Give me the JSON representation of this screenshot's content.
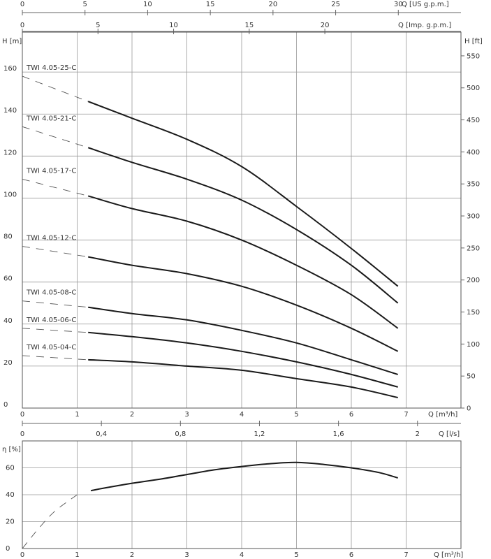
{
  "colors": {
    "curve": "#1a1a1a",
    "grid": "#999999",
    "axis": "#555555",
    "text": "#333333"
  },
  "chart_data": [
    {
      "type": "line",
      "title": "",
      "grid": true,
      "x_axes": {
        "q_usgpm": {
          "label": "Q [US g.p.m.]",
          "ticks": [
            0,
            5,
            10,
            15,
            20,
            25,
            30
          ],
          "range": [
            0,
            35
          ]
        },
        "q_impgpm": {
          "label": "Q [Imp. g.p.m.]",
          "ticks": [
            0,
            5,
            10,
            15,
            20
          ],
          "range": [
            0,
            29
          ]
        },
        "q_m3h": {
          "label": "Q [m³/h]",
          "ticks": [
            0,
            1,
            2,
            3,
            4,
            5,
            6,
            7
          ],
          "range": [
            0,
            8
          ]
        },
        "q_ls": {
          "label": "Q [l/s]",
          "ticks": [
            "0",
            "0,4",
            "0,8",
            "1,2",
            "1,6",
            "2"
          ],
          "range": [
            0,
            2.22
          ]
        }
      },
      "y_axes": {
        "h_m": {
          "label": "H [m]",
          "ticks": [
            0,
            20,
            40,
            60,
            80,
            100,
            120,
            140,
            160
          ],
          "range": [
            0,
            179
          ]
        },
        "h_ft": {
          "label": "H [ft]",
          "ticks": [
            0,
            50,
            100,
            150,
            200,
            250,
            300,
            350,
            400,
            450,
            500,
            550
          ],
          "range": [
            0,
            587
          ]
        }
      },
      "series": [
        {
          "name": "TWI 4.05-25-C",
          "dash_points": [
            [
              0,
              158
            ],
            [
              1.2,
              146
            ]
          ],
          "points": [
            [
              1.2,
              146
            ],
            [
              2,
              138
            ],
            [
              3,
              128
            ],
            [
              4,
              115
            ],
            [
              5,
              96
            ],
            [
              6,
              76
            ],
            [
              6.85,
              58
            ]
          ]
        },
        {
          "name": "TWI 4.05-21-C",
          "dash_points": [
            [
              0,
              134
            ],
            [
              1.2,
              124
            ]
          ],
          "points": [
            [
              1.2,
              124
            ],
            [
              2,
              117
            ],
            [
              3,
              109
            ],
            [
              4,
              99
            ],
            [
              5,
              85
            ],
            [
              6,
              68
            ],
            [
              6.85,
              50
            ]
          ]
        },
        {
          "name": "TWI 4.05-17-C",
          "dash_points": [
            [
              0,
              109
            ],
            [
              1.2,
              101
            ]
          ],
          "points": [
            [
              1.2,
              101
            ],
            [
              2,
              95
            ],
            [
              3,
              89
            ],
            [
              4,
              80
            ],
            [
              5,
              68
            ],
            [
              6,
              54
            ],
            [
              6.85,
              38
            ]
          ]
        },
        {
          "name": "TWI 4.05-12-C",
          "dash_points": [
            [
              0,
              77
            ],
            [
              1.2,
              72
            ]
          ],
          "points": [
            [
              1.2,
              72
            ],
            [
              2,
              68
            ],
            [
              3,
              64
            ],
            [
              4,
              58
            ],
            [
              5,
              49
            ],
            [
              6,
              38
            ],
            [
              6.85,
              27
            ]
          ]
        },
        {
          "name": "TWI 4.05-08-C",
          "dash_points": [
            [
              0,
              51
            ],
            [
              1.2,
              48
            ]
          ],
          "points": [
            [
              1.2,
              48
            ],
            [
              2,
              45
            ],
            [
              3,
              42
            ],
            [
              4,
              37
            ],
            [
              5,
              31
            ],
            [
              6,
              23
            ],
            [
              6.85,
              16
            ]
          ]
        },
        {
          "name": "TWI 4.05-06-C",
          "dash_points": [
            [
              0,
              38
            ],
            [
              1.2,
              36
            ]
          ],
          "points": [
            [
              1.2,
              36
            ],
            [
              2,
              34
            ],
            [
              3,
              31
            ],
            [
              4,
              27
            ],
            [
              5,
              22
            ],
            [
              6,
              16
            ],
            [
              6.85,
              10
            ]
          ]
        },
        {
          "name": "TWI 4.05-04-C",
          "dash_points": [
            [
              0,
              25
            ],
            [
              1.2,
              23
            ]
          ],
          "points": [
            [
              1.2,
              23
            ],
            [
              2,
              22
            ],
            [
              3,
              20
            ],
            [
              4,
              18
            ],
            [
              5,
              14
            ],
            [
              6,
              10
            ],
            [
              6.85,
              5
            ]
          ]
        }
      ]
    },
    {
      "type": "line",
      "title": "",
      "grid": true,
      "x_axis": {
        "label": "Q [m³/h]",
        "ticks": [
          0,
          1,
          2,
          3,
          4,
          5,
          6,
          7
        ],
        "range": [
          0,
          8
        ]
      },
      "y_axis": {
        "label": "η [%]",
        "ticks": [
          0,
          20,
          40,
          60
        ],
        "range": [
          0,
          80
        ]
      },
      "series": [
        {
          "name": "",
          "dash_points": [
            [
              0,
              0
            ],
            [
              0.3,
              15
            ],
            [
              0.6,
              28
            ],
            [
              1.0,
              40
            ]
          ],
          "points": [
            [
              1.25,
              43
            ],
            [
              1.5,
              45
            ],
            [
              2,
              48.5
            ],
            [
              2.5,
              51.5
            ],
            [
              3,
              55
            ],
            [
              3.5,
              58.5
            ],
            [
              4,
              61
            ],
            [
              4.5,
              63
            ],
            [
              5,
              64
            ],
            [
              5.5,
              62.5
            ],
            [
              6,
              60
            ],
            [
              6.5,
              56.5
            ],
            [
              6.85,
              52.5
            ]
          ]
        }
      ]
    }
  ]
}
